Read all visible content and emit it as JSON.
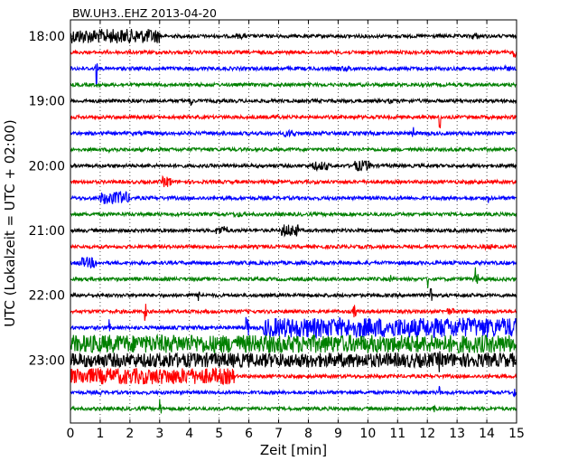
{
  "chart_data": {
    "type": "line",
    "title": "BW.UH3..EHZ 2013-04-20",
    "xlabel": "Zeit  [min]",
    "ylabel": "UTC (Lokalzeit = UTC + 02:00)",
    "xlim": [
      0,
      15
    ],
    "x_ticks": [
      "0",
      "1",
      "2",
      "3",
      "4",
      "5",
      "6",
      "7",
      "8",
      "9",
      "10",
      "11",
      "12",
      "13",
      "14",
      "15"
    ],
    "y_tick_labels": [
      {
        "label": "18:00",
        "row": 0
      },
      {
        "label": "19:00",
        "row": 4
      },
      {
        "label": "20:00",
        "row": 8
      },
      {
        "label": "21:00",
        "row": 12
      },
      {
        "label": "22:00",
        "row": 16
      },
      {
        "label": "23:00",
        "row": 20
      }
    ],
    "rows_per_hour": 4,
    "minutes_per_row": 15,
    "grid": "vertical dotted",
    "colors": [
      "#000000",
      "#ff0000",
      "#0000ff",
      "#008000"
    ],
    "rows": [
      {
        "row": 0,
        "base": 0.35,
        "events": [
          {
            "x": 0,
            "w": 3,
            "a": 8
          },
          {
            "x": 5.6,
            "w": 0.3,
            "a": 3
          },
          {
            "x": 13.5,
            "w": 0.2,
            "a": 4
          }
        ]
      },
      {
        "row": 1,
        "base": 0.35,
        "events": [
          {
            "x": 14.9,
            "w": 0.1,
            "a": 6
          }
        ]
      },
      {
        "row": 2,
        "base": 0.4,
        "events": [
          {
            "x": 0.85,
            "w": 0.05,
            "a": 25
          },
          {
            "x": 9.0,
            "w": 0.5,
            "a": 3
          },
          {
            "x": 14.6,
            "w": 0.2,
            "a": 3
          }
        ]
      },
      {
        "row": 3,
        "base": 0.35,
        "events": []
      },
      {
        "row": 4,
        "base": 0.35,
        "events": [
          {
            "x": 4.05,
            "w": 0.05,
            "a": 9
          },
          {
            "x": 10.7,
            "w": 0.2,
            "a": 3
          }
        ]
      },
      {
        "row": 5,
        "base": 0.35,
        "events": [
          {
            "x": 6.8,
            "w": 0.2,
            "a": 3
          },
          {
            "x": 12.4,
            "w": 0.05,
            "a": 14
          }
        ]
      },
      {
        "row": 6,
        "base": 0.4,
        "events": [
          {
            "x": 7.2,
            "w": 0.4,
            "a": 4
          },
          {
            "x": 11.5,
            "w": 0.05,
            "a": 9
          }
        ]
      },
      {
        "row": 7,
        "base": 0.35,
        "events": [
          {
            "x": 1.3,
            "w": 0.3,
            "a": 3
          }
        ]
      },
      {
        "row": 8,
        "base": 0.35,
        "events": [
          {
            "x": 8.1,
            "w": 0.6,
            "a": 5
          },
          {
            "x": 9.5,
            "w": 0.6,
            "a": 6
          }
        ]
      },
      {
        "row": 9,
        "base": 0.35,
        "events": [
          {
            "x": 3.1,
            "w": 0.3,
            "a": 6
          },
          {
            "x": 13.6,
            "w": 0.2,
            "a": 3
          }
        ]
      },
      {
        "row": 10,
        "base": 0.4,
        "events": [
          {
            "x": 1.0,
            "w": 1.0,
            "a": 7
          },
          {
            "x": 1.65,
            "w": 0.05,
            "a": 18
          },
          {
            "x": 14.05,
            "w": 0.05,
            "a": 10
          }
        ]
      },
      {
        "row": 11,
        "base": 0.35,
        "events": [
          {
            "x": 5.5,
            "w": 0.3,
            "a": 3
          }
        ]
      },
      {
        "row": 12,
        "base": 0.35,
        "events": [
          {
            "x": 4.9,
            "w": 0.4,
            "a": 5
          },
          {
            "x": 7.1,
            "w": 0.6,
            "a": 7
          }
        ]
      },
      {
        "row": 13,
        "base": 0.35,
        "events": [
          {
            "x": 13.9,
            "w": 0.3,
            "a": 3
          }
        ]
      },
      {
        "row": 14,
        "base": 0.4,
        "events": [
          {
            "x": 0.3,
            "w": 0.6,
            "a": 6
          }
        ]
      },
      {
        "row": 15,
        "base": 0.35,
        "events": [
          {
            "x": 10.75,
            "w": 0.05,
            "a": 10
          },
          {
            "x": 12.0,
            "w": 0.05,
            "a": 12
          },
          {
            "x": 13.6,
            "w": 0.1,
            "a": 14
          }
        ]
      },
      {
        "row": 16,
        "base": 0.35,
        "events": [
          {
            "x": 4.3,
            "w": 0.05,
            "a": 12
          },
          {
            "x": 12.1,
            "w": 0.1,
            "a": 12
          }
        ]
      },
      {
        "row": 17,
        "base": 0.35,
        "events": [
          {
            "x": 2.5,
            "w": 0.05,
            "a": 12
          },
          {
            "x": 9.5,
            "w": 0.1,
            "a": 8
          },
          {
            "x": 12.6,
            "w": 0.3,
            "a": 4
          }
        ]
      },
      {
        "row": 18,
        "base": 0.4,
        "events": [
          {
            "x": 1.3,
            "w": 0.05,
            "a": 10
          },
          {
            "x": 5.9,
            "w": 0.1,
            "a": 12
          },
          {
            "x": 6.5,
            "w": 8.5,
            "a": 11
          }
        ]
      },
      {
        "row": 19,
        "base": 0.4,
        "events": [
          {
            "x": 0,
            "w": 15,
            "a": 10
          },
          {
            "x": 8.6,
            "w": 0.05,
            "a": 14
          }
        ]
      },
      {
        "row": 20,
        "base": 0.4,
        "events": [
          {
            "x": 0,
            "w": 15,
            "a": 8
          },
          {
            "x": 3.3,
            "w": 0.05,
            "a": 14
          },
          {
            "x": 12.4,
            "w": 0.05,
            "a": 14
          }
        ]
      },
      {
        "row": 21,
        "base": 0.35,
        "events": [
          {
            "x": 0,
            "w": 5.5,
            "a": 9
          }
        ]
      },
      {
        "row": 22,
        "base": 0.35,
        "events": [
          {
            "x": 1.0,
            "w": 0.05,
            "a": 8
          },
          {
            "x": 12.4,
            "w": 0.05,
            "a": 8
          },
          {
            "x": 14.9,
            "w": 0.1,
            "a": 5
          }
        ]
      },
      {
        "row": 23,
        "base": 0.35,
        "events": [
          {
            "x": 3.0,
            "w": 0.05,
            "a": 14
          },
          {
            "x": 12.2,
            "w": 0.05,
            "a": 10
          }
        ]
      }
    ]
  }
}
